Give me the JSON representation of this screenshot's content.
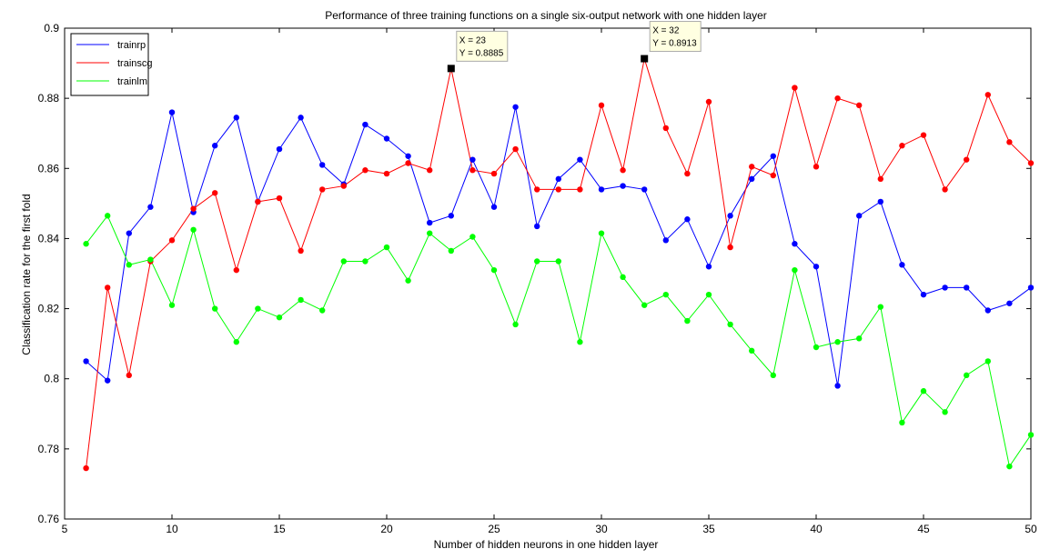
{
  "chart_data": {
    "type": "line",
    "title": "Performance of three training functions on a single six-output network with one hidden layer",
    "xlabel": "Number of hidden neurons in one hidden layer",
    "ylabel": "Classification rate for the first fold",
    "xlim": [
      5,
      50
    ],
    "ylim": [
      0.76,
      0.9
    ],
    "xticks": [
      5,
      10,
      15,
      20,
      25,
      30,
      35,
      40,
      45,
      50
    ],
    "yticks": [
      0.76,
      0.78,
      0.8,
      0.82,
      0.84,
      0.86,
      0.88,
      0.9
    ],
    "grid": false,
    "legend_position": "top-left",
    "x": [
      6,
      7,
      8,
      9,
      10,
      11,
      12,
      13,
      14,
      15,
      16,
      17,
      18,
      19,
      20,
      21,
      22,
      23,
      24,
      25,
      26,
      27,
      28,
      29,
      30,
      31,
      32,
      33,
      34,
      35,
      36,
      37,
      38,
      39,
      40,
      41,
      42,
      43,
      44,
      45,
      46,
      47,
      48,
      49,
      50
    ],
    "series": [
      {
        "name": "trainrp",
        "color": "#0000ff",
        "values": [
          0.805,
          0.7995,
          0.8415,
          0.849,
          0.876,
          0.8475,
          0.8665,
          0.8745,
          0.8505,
          0.8655,
          0.8745,
          0.861,
          0.8555,
          0.8725,
          0.8685,
          0.8635,
          0.8445,
          0.8465,
          0.8625,
          0.849,
          0.8775,
          0.8435,
          0.857,
          0.8625,
          0.854,
          0.855,
          0.854,
          0.8395,
          0.8455,
          0.832,
          0.8465,
          0.857,
          0.8635,
          0.8385,
          0.832,
          0.798,
          0.8465,
          0.8505,
          0.8325,
          0.824,
          0.826,
          0.826,
          0.8195,
          0.8215,
          0.826
        ]
      },
      {
        "name": "trainscg",
        "color": "#ff0000",
        "values": [
          0.7745,
          0.826,
          0.801,
          0.8335,
          0.8395,
          0.8485,
          0.853,
          0.831,
          0.8505,
          0.8515,
          0.8365,
          0.854,
          0.855,
          0.8595,
          0.8585,
          0.8615,
          0.8595,
          0.8885,
          0.8595,
          0.8585,
          0.8655,
          0.854,
          0.854,
          0.854,
          0.878,
          0.8595,
          0.8913,
          0.8715,
          0.8585,
          0.879,
          0.8375,
          0.8605,
          0.858,
          0.883,
          0.8605,
          0.88,
          0.878,
          0.857,
          0.8665,
          0.8695,
          0.854,
          0.8625,
          0.881,
          0.8675,
          0.8615
        ]
      },
      {
        "name": "trainlm",
        "color": "#00ff00",
        "values": [
          0.8385,
          0.8465,
          0.8325,
          0.834,
          0.821,
          0.8425,
          0.82,
          0.8105,
          0.82,
          0.8175,
          0.8225,
          0.8195,
          0.8335,
          0.8335,
          0.8375,
          0.828,
          0.8415,
          0.8365,
          0.8405,
          0.831,
          0.8155,
          0.8335,
          0.8335,
          0.8105,
          0.8415,
          0.829,
          0.821,
          0.824,
          0.8165,
          0.824,
          0.8155,
          0.808,
          0.801,
          0.831,
          0.809,
          0.8105,
          0.8115,
          0.8205,
          0.7875,
          0.7965,
          0.7905,
          0.801,
          0.805,
          0.775,
          0.784
        ]
      }
    ],
    "annotations": [
      {
        "x": 23,
        "y": 0.8885,
        "line1": "X = 23",
        "line2": "Y = 0.8885"
      },
      {
        "x": 32,
        "y": 0.8913,
        "line1": "X = 32",
        "line2": "Y = 0.8913"
      }
    ]
  }
}
